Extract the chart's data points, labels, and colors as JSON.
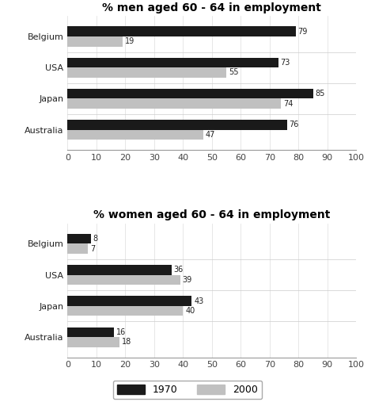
{
  "men_title": "% men aged 60 - 64 in employment",
  "women_title": "% women aged 60 - 64 in employment",
  "countries": [
    "Australia",
    "Japan",
    "USA",
    "Belgium"
  ],
  "men_1970": [
    76,
    85,
    73,
    79
  ],
  "men_2000": [
    47,
    74,
    55,
    19
  ],
  "women_1970": [
    16,
    43,
    36,
    8
  ],
  "women_2000": [
    18,
    40,
    39,
    7
  ],
  "color_1970": "#1a1a1a",
  "color_2000": "#c0c0c0",
  "bar_height": 0.32,
  "xlim": [
    0,
    100
  ],
  "xticks": [
    0,
    10,
    20,
    30,
    40,
    50,
    60,
    70,
    80,
    90,
    100
  ],
  "label_1970": "1970",
  "label_2000": "2000",
  "bg_color": "#ffffff",
  "title_fontsize": 10,
  "tick_fontsize": 8,
  "value_fontsize": 7
}
